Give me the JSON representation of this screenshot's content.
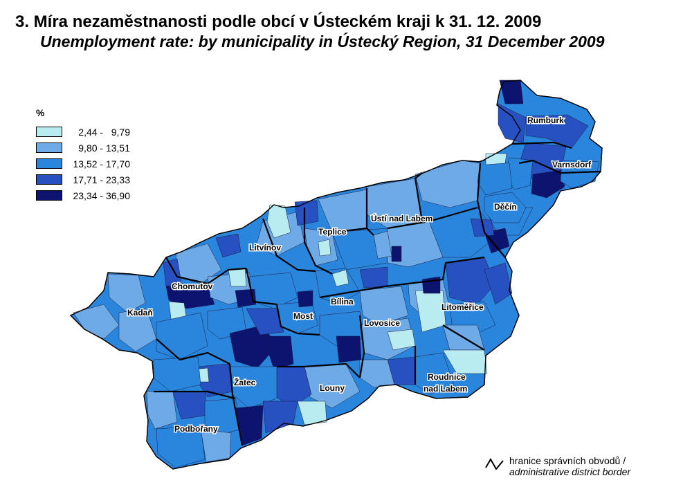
{
  "title": {
    "cz": "3. Míra nezaměstnanosti podle obcí v Ústeckém kraji k 31. 12. 2009",
    "en": "Unemployment rate: by municipality in Ústecký Region, 31 December 2009"
  },
  "legend": {
    "unit": "%",
    "classes": [
      {
        "label": " 2,44 -   9,79",
        "min": 2.44,
        "max": 9.79,
        "color": "#b8ecf1"
      },
      {
        "label": " 9,80 - 13,51",
        "min": 9.8,
        "max": 13.51,
        "color": "#6eaae6"
      },
      {
        "label": "13,52 - 17,70",
        "min": 13.52,
        "max": 17.7,
        "color": "#2a86dc"
      },
      {
        "label": "17,71 - 23,33",
        "min": 17.71,
        "max": 23.33,
        "color": "#2750c0"
      },
      {
        "label": "23,34 - 36,90",
        "min": 23.34,
        "max": 36.9,
        "color": "#0c1470"
      }
    ]
  },
  "districts": [
    {
      "name": "Rumburk"
    },
    {
      "name": "Varnsdorf"
    },
    {
      "name": "Děčín"
    },
    {
      "name": "Ústí nad Labem"
    },
    {
      "name": "Teplice"
    },
    {
      "name": "Litvínov"
    },
    {
      "name": "Chomutov"
    },
    {
      "name": "Kadaň"
    },
    {
      "name": "Most"
    },
    {
      "name": "Bílina"
    },
    {
      "name": "Lovosice"
    },
    {
      "name": "Litoměřice"
    },
    {
      "name": "Žatec"
    },
    {
      "name": "Louny"
    },
    {
      "name": "Roudnice",
      "name2": "nad Labem"
    },
    {
      "name": "Podbořany"
    }
  ],
  "border_legend": {
    "cz": "hranice správních obvodů /",
    "en": "administrative district border"
  }
}
